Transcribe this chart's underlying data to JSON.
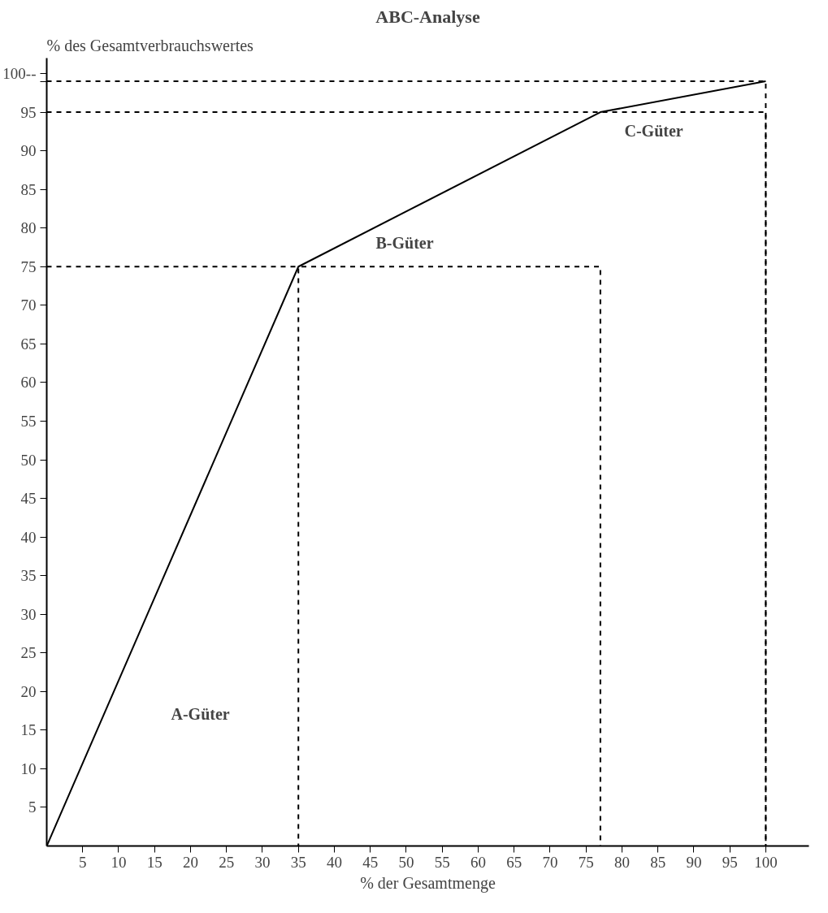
{
  "chart_data": {
    "type": "line",
    "title": "ABC-Analyse",
    "xlabel": "% der Gesamtmenge",
    "ylabel": "% des Gesamtverbrauchswertes",
    "x": [
      0,
      35,
      77,
      100
    ],
    "series": [
      {
        "color": "#000000",
        "values": [
          0,
          75,
          95,
          99
        ]
      },
      {
        "color": "#000000",
        "line_style": "dashed",
        "x": [
          0,
          35,
          35,
          35,
          77,
          77
        ],
        "values": [
          75,
          75,
          0,
          75,
          75,
          0
        ]
      },
      {
        "color": "#000000",
        "line_style": "dashed",
        "x": [
          0,
          100,
          100
        ],
        "values": [
          95,
          95,
          0
        ]
      },
      {
        "color": "#000000",
        "line_style": "dashed",
        "x": [
          0,
          100,
          100
        ],
        "values": [
          99,
          99,
          0
        ]
      }
    ],
    "xlim": [
      0,
      106
    ],
    "ylim": [
      0,
      102
    ],
    "xticks": [
      5,
      10,
      15,
      20,
      25,
      30,
      35,
      40,
      45,
      50,
      55,
      60,
      65,
      70,
      75,
      80,
      85,
      90,
      95,
      100
    ],
    "yticks": [
      5,
      10,
      15,
      20,
      25,
      30,
      35,
      40,
      45,
      50,
      55,
      60,
      65,
      70,
      75,
      80,
      85,
      90,
      95,
      {
        "value": 99,
        "label": null
      },
      {
        "value": 100,
        "label": "100--"
      }
    ],
    "annotations": [
      "A-Güter",
      "B-Güter",
      "C-Güter"
    ],
    "marker": "none",
    "line_style": "solid"
  }
}
